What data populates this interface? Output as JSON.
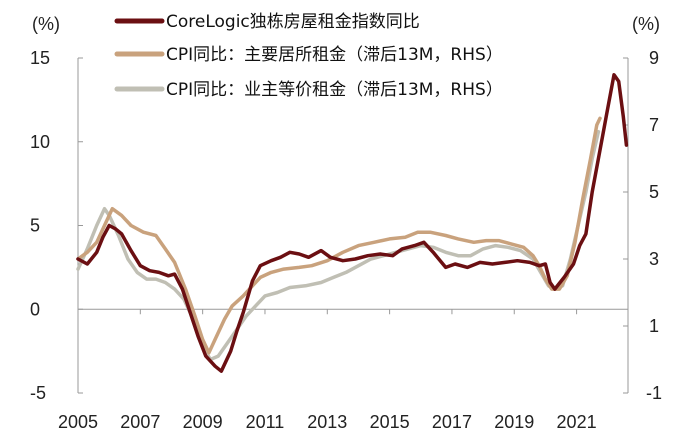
{
  "chart_data": {
    "type": "line",
    "left_axis": {
      "unit_label": "(%)",
      "ylim": [
        -5,
        15
      ],
      "ticks": [
        15,
        10,
        5,
        0,
        -5
      ],
      "tick_labels": [
        "15",
        "10",
        "5",
        "0",
        "-5"
      ]
    },
    "right_axis": {
      "unit_label": "(%)",
      "ylim": [
        -1,
        9
      ],
      "ticks": [
        9,
        7,
        5,
        3,
        1,
        -1
      ],
      "tick_labels": [
        "9",
        "7",
        "5",
        "3",
        "1",
        "-1"
      ]
    },
    "x_axis": {
      "xlim": [
        2005.0,
        2022.65
      ],
      "ticks": [
        2005,
        2007,
        2009,
        2011,
        2013,
        2015,
        2017,
        2019,
        2021
      ],
      "tick_labels": [
        "2005",
        "2007",
        "2009",
        "2011",
        "2013",
        "2015",
        "2017",
        "2019",
        "2021"
      ]
    },
    "legend_position": "top",
    "grid": false,
    "series": [
      {
        "name": "CoreLogic独栋房屋租金指数同比",
        "axis": "left",
        "color": "#6b0f12",
        "points": [
          [
            2005.0,
            3.0
          ],
          [
            2005.3,
            2.7
          ],
          [
            2005.6,
            3.4
          ],
          [
            2005.8,
            4.3
          ],
          [
            2006.0,
            5.0
          ],
          [
            2006.2,
            4.8
          ],
          [
            2006.4,
            4.5
          ],
          [
            2006.7,
            3.5
          ],
          [
            2007.0,
            2.6
          ],
          [
            2007.3,
            2.3
          ],
          [
            2007.6,
            2.2
          ],
          [
            2007.9,
            2.0
          ],
          [
            2008.1,
            2.1
          ],
          [
            2008.35,
            1.2
          ],
          [
            2008.6,
            -0.2
          ],
          [
            2008.85,
            -1.6
          ],
          [
            2009.1,
            -2.8
          ],
          [
            2009.4,
            -3.4
          ],
          [
            2009.6,
            -3.7
          ],
          [
            2009.9,
            -2.5
          ],
          [
            2010.1,
            -1.3
          ],
          [
            2010.3,
            -0.2
          ],
          [
            2010.6,
            1.7
          ],
          [
            2010.85,
            2.6
          ],
          [
            2011.2,
            2.9
          ],
          [
            2011.5,
            3.1
          ],
          [
            2011.8,
            3.4
          ],
          [
            2012.1,
            3.3
          ],
          [
            2012.4,
            3.1
          ],
          [
            2012.8,
            3.5
          ],
          [
            2013.1,
            3.1
          ],
          [
            2013.5,
            2.9
          ],
          [
            2013.9,
            3.0
          ],
          [
            2014.3,
            3.2
          ],
          [
            2014.7,
            3.3
          ],
          [
            2015.1,
            3.2
          ],
          [
            2015.4,
            3.6
          ],
          [
            2015.8,
            3.8
          ],
          [
            2016.1,
            4.0
          ],
          [
            2016.4,
            3.4
          ],
          [
            2016.8,
            2.5
          ],
          [
            2017.1,
            2.7
          ],
          [
            2017.5,
            2.5
          ],
          [
            2017.9,
            2.8
          ],
          [
            2018.3,
            2.7
          ],
          [
            2018.7,
            2.8
          ],
          [
            2019.1,
            2.9
          ],
          [
            2019.5,
            2.8
          ],
          [
            2019.8,
            2.6
          ],
          [
            2020.0,
            2.7
          ],
          [
            2020.15,
            1.6
          ],
          [
            2020.3,
            1.2
          ],
          [
            2020.6,
            1.9
          ],
          [
            2020.9,
            2.7
          ],
          [
            2021.1,
            3.8
          ],
          [
            2021.3,
            4.5
          ],
          [
            2021.5,
            7.0
          ],
          [
            2021.75,
            9.5
          ],
          [
            2021.95,
            11.5
          ],
          [
            2022.2,
            14.0
          ],
          [
            2022.35,
            13.6
          ],
          [
            2022.5,
            11.5
          ],
          [
            2022.6,
            9.8
          ]
        ]
      },
      {
        "name": "CPI同比：主要居所租金（滞后13M，RHS）",
        "axis": "right",
        "color": "#c9a27d",
        "points": [
          [
            2005.0,
            3.0
          ],
          [
            2005.3,
            3.2
          ],
          [
            2005.6,
            3.5
          ],
          [
            2005.85,
            4.0
          ],
          [
            2006.1,
            4.5
          ],
          [
            2006.4,
            4.3
          ],
          [
            2006.7,
            4.0
          ],
          [
            2007.1,
            3.8
          ],
          [
            2007.5,
            3.7
          ],
          [
            2007.8,
            3.3
          ],
          [
            2008.1,
            2.9
          ],
          [
            2008.45,
            2.1
          ],
          [
            2008.75,
            1.3
          ],
          [
            2009.0,
            0.6
          ],
          [
            2009.2,
            0.2
          ],
          [
            2009.4,
            0.6
          ],
          [
            2009.7,
            1.2
          ],
          [
            2009.95,
            1.6
          ],
          [
            2010.3,
            1.9
          ],
          [
            2010.6,
            2.2
          ],
          [
            2010.85,
            2.45
          ],
          [
            2011.2,
            2.6
          ],
          [
            2011.6,
            2.7
          ],
          [
            2012.1,
            2.75
          ],
          [
            2012.5,
            2.8
          ],
          [
            2013.0,
            2.95
          ],
          [
            2013.5,
            3.2
          ],
          [
            2014.0,
            3.4
          ],
          [
            2014.5,
            3.5
          ],
          [
            2015.0,
            3.6
          ],
          [
            2015.5,
            3.65
          ],
          [
            2015.9,
            3.8
          ],
          [
            2016.3,
            3.8
          ],
          [
            2016.8,
            3.7
          ],
          [
            2017.2,
            3.6
          ],
          [
            2017.7,
            3.5
          ],
          [
            2018.1,
            3.55
          ],
          [
            2018.5,
            3.55
          ],
          [
            2018.9,
            3.45
          ],
          [
            2019.3,
            3.35
          ],
          [
            2019.6,
            3.1
          ],
          [
            2019.8,
            2.8
          ],
          [
            2020.0,
            2.4
          ],
          [
            2020.2,
            2.1
          ],
          [
            2020.45,
            2.1
          ],
          [
            2020.7,
            2.5
          ],
          [
            2020.95,
            3.5
          ],
          [
            2021.2,
            4.8
          ],
          [
            2021.45,
            6.0
          ],
          [
            2021.65,
            7.0
          ],
          [
            2021.75,
            7.2
          ]
        ]
      },
      {
        "name": "CPI同比：业主等价租金（滞后13M，RHS）",
        "axis": "right",
        "color": "#c0bfb4",
        "points": [
          [
            2005.0,
            2.7
          ],
          [
            2005.3,
            3.3
          ],
          [
            2005.6,
            4.0
          ],
          [
            2005.85,
            4.5
          ],
          [
            2006.0,
            4.3
          ],
          [
            2006.3,
            3.7
          ],
          [
            2006.6,
            3.0
          ],
          [
            2006.9,
            2.6
          ],
          [
            2007.2,
            2.4
          ],
          [
            2007.5,
            2.4
          ],
          [
            2007.8,
            2.3
          ],
          [
            2008.1,
            2.1
          ],
          [
            2008.4,
            1.8
          ],
          [
            2008.7,
            1.2
          ],
          [
            2009.0,
            0.4
          ],
          [
            2009.25,
            0.0
          ],
          [
            2009.5,
            0.1
          ],
          [
            2009.8,
            0.5
          ],
          [
            2010.1,
            0.9
          ],
          [
            2010.4,
            1.3
          ],
          [
            2010.7,
            1.6
          ],
          [
            2011.0,
            1.9
          ],
          [
            2011.4,
            2.0
          ],
          [
            2011.8,
            2.15
          ],
          [
            2012.3,
            2.2
          ],
          [
            2012.8,
            2.3
          ],
          [
            2013.2,
            2.45
          ],
          [
            2013.6,
            2.6
          ],
          [
            2014.0,
            2.8
          ],
          [
            2014.4,
            3.0
          ],
          [
            2014.8,
            3.1
          ],
          [
            2015.2,
            3.2
          ],
          [
            2015.6,
            3.3
          ],
          [
            2016.0,
            3.4
          ],
          [
            2016.4,
            3.35
          ],
          [
            2016.8,
            3.2
          ],
          [
            2017.2,
            3.1
          ],
          [
            2017.6,
            3.1
          ],
          [
            2018.0,
            3.3
          ],
          [
            2018.4,
            3.4
          ],
          [
            2018.8,
            3.35
          ],
          [
            2019.2,
            3.25
          ],
          [
            2019.6,
            3.0
          ],
          [
            2019.85,
            2.6
          ],
          [
            2020.1,
            2.2
          ],
          [
            2020.3,
            2.1
          ],
          [
            2020.55,
            2.2
          ],
          [
            2020.8,
            3.0
          ],
          [
            2021.05,
            4.0
          ],
          [
            2021.3,
            5.0
          ],
          [
            2021.5,
            6.0
          ],
          [
            2021.7,
            6.8
          ]
        ]
      }
    ]
  }
}
